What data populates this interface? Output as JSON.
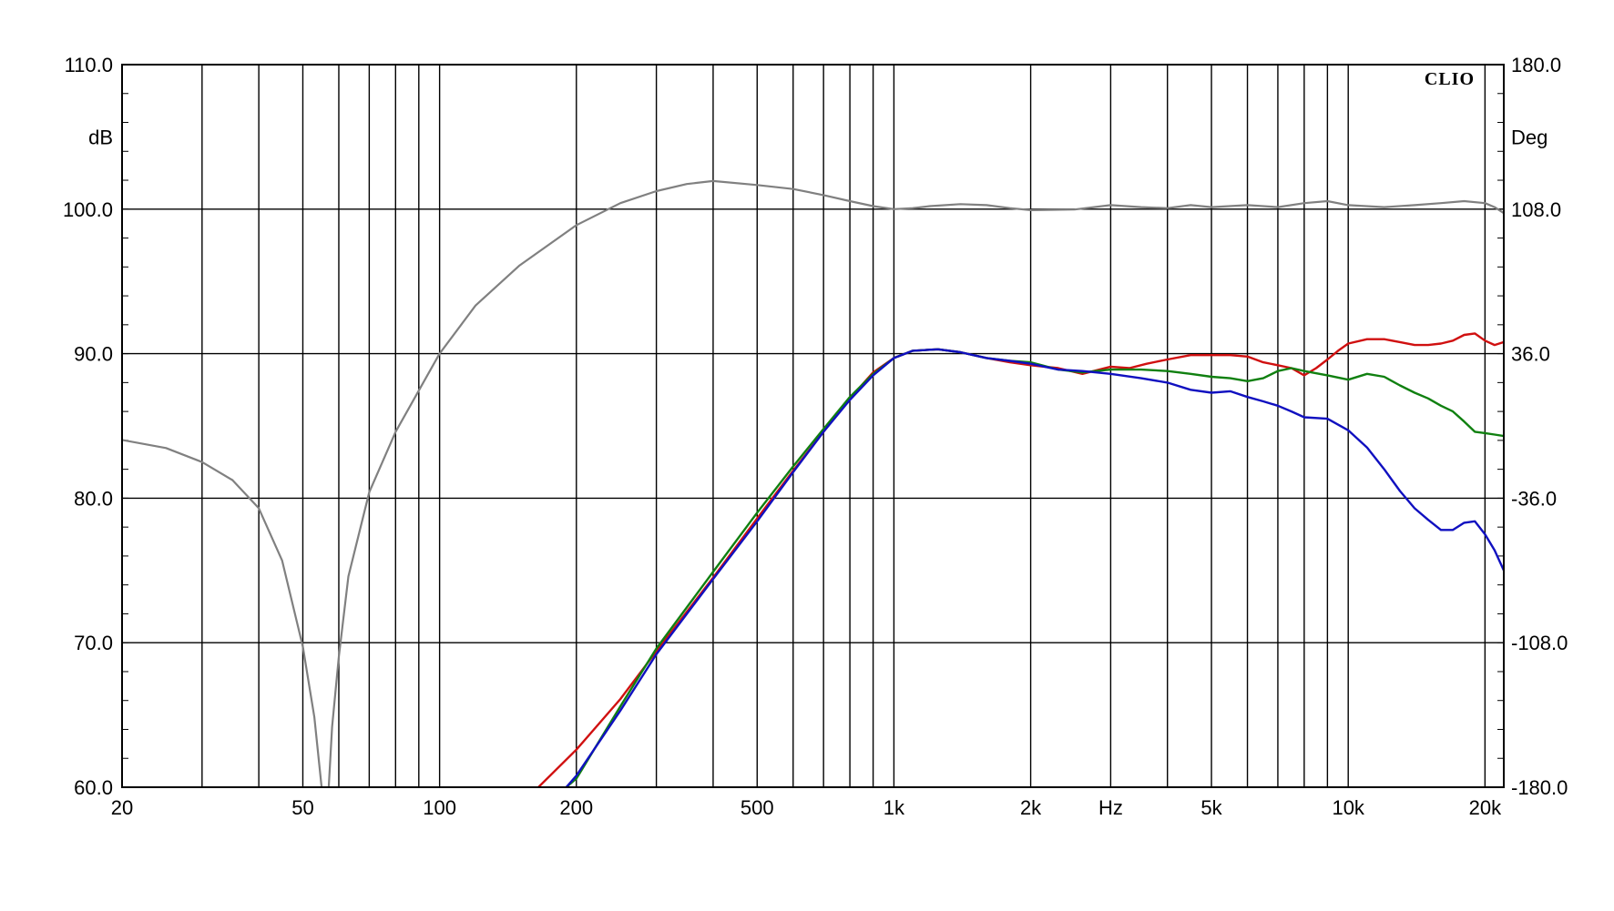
{
  "chart_data": {
    "type": "line",
    "brand": "CLIO",
    "x_axis": {
      "scale": "log",
      "range": [
        20,
        22000
      ],
      "unit_label": "Hz",
      "ticks": [
        {
          "value": 20,
          "label": "20"
        },
        {
          "value": 50,
          "label": "50"
        },
        {
          "value": 100,
          "label": "100"
        },
        {
          "value": 200,
          "label": "200"
        },
        {
          "value": 500,
          "label": "500"
        },
        {
          "value": 1000,
          "label": "1k"
        },
        {
          "value": 2000,
          "label": "2k"
        },
        {
          "value": 5000,
          "label": "5k"
        },
        {
          "value": 10000,
          "label": "10k"
        },
        {
          "value": 20000,
          "label": "20k"
        }
      ],
      "unit_label_position": 3000
    },
    "y_left": {
      "label": "dB",
      "range": [
        60,
        110
      ],
      "ticks": [
        {
          "value": 110,
          "label": "110.0"
        },
        {
          "value": 100,
          "label": "100.0"
        },
        {
          "value": 90,
          "label": "90.0"
        },
        {
          "value": 80,
          "label": "80.0"
        },
        {
          "value": 70,
          "label": "70.0"
        },
        {
          "value": 60,
          "label": "60.0"
        }
      ]
    },
    "y_right": {
      "label": "Deg",
      "range": [
        -180,
        180
      ],
      "ticks": [
        {
          "value": 180,
          "label": "180.0"
        },
        {
          "value": 108,
          "label": "108.0"
        },
        {
          "value": 36,
          "label": "36.0"
        },
        {
          "value": -36,
          "label": "-36.0"
        },
        {
          "value": -108,
          "label": "-108.0"
        },
        {
          "value": -180,
          "label": "-180.0"
        }
      ]
    },
    "grid": true,
    "series": [
      {
        "color": "#d01010",
        "axis": "left",
        "points": [
          [
            165,
            60
          ],
          [
            200,
            62.6
          ],
          [
            250,
            66.1
          ],
          [
            300,
            69.4
          ],
          [
            400,
            74.5
          ],
          [
            500,
            78.6
          ],
          [
            600,
            81.9
          ],
          [
            700,
            84.6
          ],
          [
            800,
            86.9
          ],
          [
            900,
            88.7
          ],
          [
            1000,
            89.7
          ],
          [
            1100,
            90.2
          ],
          [
            1250,
            90.3
          ],
          [
            1400,
            90.1
          ],
          [
            1600,
            89.7
          ],
          [
            1800,
            89.4
          ],
          [
            2000,
            89.2
          ],
          [
            2300,
            89.0
          ],
          [
            2600,
            88.6
          ],
          [
            3000,
            89.1
          ],
          [
            3300,
            89.0
          ],
          [
            3600,
            89.3
          ],
          [
            4000,
            89.6
          ],
          [
            4500,
            89.9
          ],
          [
            5000,
            89.9
          ],
          [
            5500,
            89.9
          ],
          [
            6000,
            89.8
          ],
          [
            6500,
            89.4
          ],
          [
            7000,
            89.2
          ],
          [
            7500,
            89.0
          ],
          [
            8000,
            88.5
          ],
          [
            8500,
            89.0
          ],
          [
            9000,
            89.6
          ],
          [
            9500,
            90.2
          ],
          [
            10000,
            90.7
          ],
          [
            11000,
            91.0
          ],
          [
            12000,
            91.0
          ],
          [
            13000,
            90.8
          ],
          [
            14000,
            90.6
          ],
          [
            15000,
            90.6
          ],
          [
            16000,
            90.7
          ],
          [
            17000,
            90.9
          ],
          [
            18000,
            91.3
          ],
          [
            19000,
            91.4
          ],
          [
            20000,
            90.9
          ],
          [
            21000,
            90.6
          ],
          [
            22000,
            90.8
          ]
        ]
      },
      {
        "color": "#108010",
        "axis": "left",
        "points": [
          [
            190,
            60
          ],
          [
            200,
            60.6
          ],
          [
            250,
            65.6
          ],
          [
            300,
            69.6
          ],
          [
            400,
            74.9
          ],
          [
            500,
            79.0
          ],
          [
            600,
            82.2
          ],
          [
            700,
            84.8
          ],
          [
            800,
            87.0
          ],
          [
            900,
            88.6
          ],
          [
            1000,
            89.7
          ],
          [
            1100,
            90.2
          ],
          [
            1250,
            90.3
          ],
          [
            1400,
            90.1
          ],
          [
            1600,
            89.7
          ],
          [
            1800,
            89.5
          ],
          [
            2000,
            89.4
          ],
          [
            2300,
            88.9
          ],
          [
            2600,
            88.7
          ],
          [
            3000,
            88.9
          ],
          [
            3500,
            88.9
          ],
          [
            4000,
            88.8
          ],
          [
            4500,
            88.6
          ],
          [
            5000,
            88.4
          ],
          [
            5500,
            88.3
          ],
          [
            6000,
            88.1
          ],
          [
            6500,
            88.3
          ],
          [
            7000,
            88.8
          ],
          [
            7500,
            89.0
          ],
          [
            8000,
            88.8
          ],
          [
            9000,
            88.5
          ],
          [
            10000,
            88.2
          ],
          [
            11000,
            88.6
          ],
          [
            12000,
            88.4
          ],
          [
            13000,
            87.8
          ],
          [
            14000,
            87.3
          ],
          [
            15000,
            86.9
          ],
          [
            16000,
            86.4
          ],
          [
            17000,
            86.0
          ],
          [
            18000,
            85.3
          ],
          [
            19000,
            84.6
          ],
          [
            20000,
            84.5
          ],
          [
            21000,
            84.4
          ],
          [
            22000,
            84.3
          ]
        ]
      },
      {
        "color": "#1010c0",
        "axis": "left",
        "points": [
          [
            190,
            60
          ],
          [
            200,
            60.8
          ],
          [
            250,
            65.3
          ],
          [
            300,
            69.2
          ],
          [
            400,
            74.4
          ],
          [
            500,
            78.4
          ],
          [
            600,
            81.8
          ],
          [
            700,
            84.6
          ],
          [
            800,
            86.8
          ],
          [
            900,
            88.5
          ],
          [
            1000,
            89.7
          ],
          [
            1100,
            90.2
          ],
          [
            1250,
            90.3
          ],
          [
            1400,
            90.1
          ],
          [
            1600,
            89.7
          ],
          [
            1800,
            89.5
          ],
          [
            2000,
            89.3
          ],
          [
            2300,
            88.9
          ],
          [
            2600,
            88.8
          ],
          [
            3000,
            88.6
          ],
          [
            3500,
            88.3
          ],
          [
            4000,
            88.0
          ],
          [
            4500,
            87.5
          ],
          [
            5000,
            87.3
          ],
          [
            5500,
            87.4
          ],
          [
            6000,
            87.0
          ],
          [
            6500,
            86.7
          ],
          [
            7000,
            86.4
          ],
          [
            7500,
            86.0
          ],
          [
            8000,
            85.6
          ],
          [
            9000,
            85.5
          ],
          [
            10000,
            84.7
          ],
          [
            11000,
            83.5
          ],
          [
            12000,
            82.0
          ],
          [
            13000,
            80.5
          ],
          [
            14000,
            79.3
          ],
          [
            15000,
            78.5
          ],
          [
            16000,
            77.8
          ],
          [
            17000,
            77.8
          ],
          [
            18000,
            78.3
          ],
          [
            19000,
            78.4
          ],
          [
            20000,
            77.5
          ],
          [
            21000,
            76.4
          ],
          [
            22000,
            75.0
          ]
        ]
      },
      {
        "color": "#808080",
        "axis": "right",
        "segments": [
          [
            [
              20,
              -7
            ],
            [
              25,
              -11
            ],
            [
              30,
              -18
            ],
            [
              35,
              -27
            ],
            [
              40,
              -41
            ],
            [
              45,
              -67
            ],
            [
              50,
              -110
            ],
            [
              53,
              -145
            ],
            [
              55,
              -180
            ]
          ],
          [
            [
              57,
              -180
            ],
            [
              58,
              -150
            ],
            [
              60,
              -115
            ],
            [
              63,
              -75
            ],
            [
              70,
              -33
            ],
            [
              80,
              -3
            ],
            [
              100,
              36
            ],
            [
              120,
              60
            ],
            [
              150,
              80
            ],
            [
              200,
              100
            ],
            [
              250,
              111
            ],
            [
              300,
              117
            ],
            [
              350,
              120.5
            ],
            [
              400,
              122
            ],
            [
              500,
              120
            ],
            [
              600,
              118
            ],
            [
              700,
              115
            ],
            [
              800,
              112
            ],
            [
              900,
              109.5
            ],
            [
              1000,
              108
            ],
            [
              1100,
              108.5
            ],
            [
              1200,
              109.5
            ],
            [
              1400,
              110.5
            ],
            [
              1600,
              110
            ],
            [
              1800,
              108.5
            ],
            [
              2000,
              107.5
            ],
            [
              2500,
              107.8
            ],
            [
              3000,
              110
            ],
            [
              3500,
              109
            ],
            [
              4000,
              108.5
            ],
            [
              4500,
              110
            ],
            [
              5000,
              109
            ],
            [
              6000,
              110
            ],
            [
              7000,
              109
            ],
            [
              8000,
              111
            ],
            [
              9000,
              112
            ],
            [
              10000,
              110
            ],
            [
              12000,
              109
            ],
            [
              14000,
              110
            ],
            [
              16000,
              111
            ],
            [
              18000,
              112
            ],
            [
              20000,
              111
            ],
            [
              21000,
              109
            ],
            [
              22000,
              106
            ]
          ]
        ]
      }
    ]
  }
}
